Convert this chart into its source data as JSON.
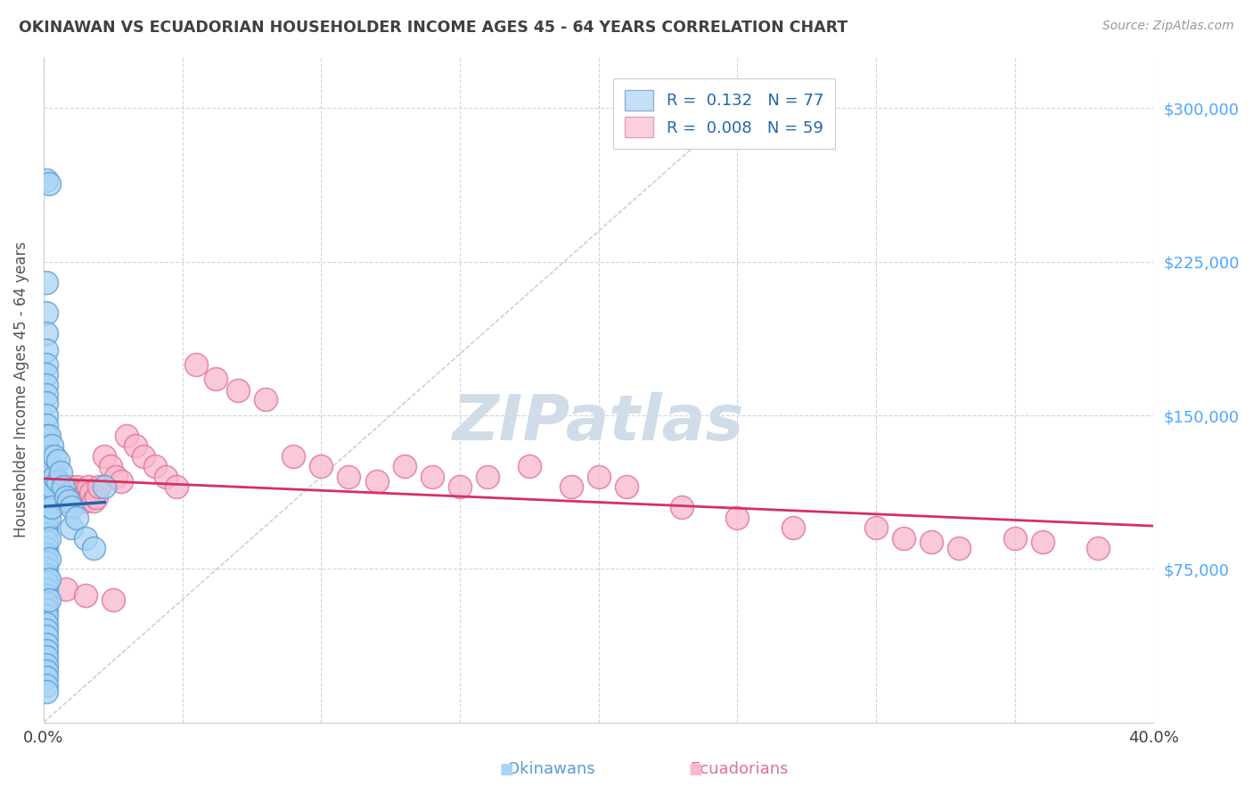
{
  "title": "OKINAWAN VS ECUADORIAN HOUSEHOLDER INCOME AGES 45 - 64 YEARS CORRELATION CHART",
  "source_text": "Source: ZipAtlas.com",
  "ylabel": "Householder Income Ages 45 - 64 years",
  "xlim": [
    0.0,
    0.4
  ],
  "ylim": [
    0,
    325000
  ],
  "yticks": [
    0,
    75000,
    150000,
    225000,
    300000
  ],
  "xticks": [
    0.0,
    0.05,
    0.1,
    0.15,
    0.2,
    0.25,
    0.3,
    0.35,
    0.4
  ],
  "xtick_labels": [
    "0.0%",
    "",
    "",
    "",
    "",
    "",
    "",
    "",
    "40.0%"
  ],
  "blue_scatter_color": "#a8d4f5",
  "blue_edge_color": "#5b9bd5",
  "pink_scatter_color": "#f9b8cd",
  "pink_edge_color": "#e07090",
  "blue_line_color": "#2166ac",
  "pink_line_color": "#d63060",
  "title_color": "#404040",
  "source_color": "#999999",
  "ylabel_color": "#555555",
  "ytick_color": "#4da6ff",
  "background_color": "#ffffff",
  "grid_color": "#c8d8e8",
  "diag_color": "#c0c8d8",
  "watermark_color": "#d0dce8",
  "okinawan_x": [
    0.001,
    0.002,
    0.001,
    0.001,
    0.001,
    0.001,
    0.001,
    0.001,
    0.001,
    0.001,
    0.001,
    0.001,
    0.001,
    0.001,
    0.001,
    0.001,
    0.001,
    0.001,
    0.001,
    0.001,
    0.001,
    0.001,
    0.001,
    0.001,
    0.001,
    0.001,
    0.001,
    0.001,
    0.001,
    0.001,
    0.001,
    0.001,
    0.001,
    0.001,
    0.001,
    0.001,
    0.001,
    0.001,
    0.001,
    0.001,
    0.001,
    0.001,
    0.001,
    0.001,
    0.001,
    0.001,
    0.001,
    0.001,
    0.001,
    0.001,
    0.002,
    0.002,
    0.002,
    0.002,
    0.002,
    0.002,
    0.002,
    0.002,
    0.002,
    0.003,
    0.003,
    0.003,
    0.003,
    0.004,
    0.004,
    0.005,
    0.005,
    0.006,
    0.007,
    0.008,
    0.009,
    0.01,
    0.01,
    0.012,
    0.015,
    0.018,
    0.022
  ],
  "okinawan_y": [
    265000,
    263000,
    215000,
    200000,
    190000,
    182000,
    175000,
    170000,
    165000,
    160000,
    156000,
    150000,
    145000,
    140000,
    135000,
    130000,
    125000,
    122000,
    118000,
    115000,
    112000,
    108000,
    105000,
    102000,
    98000,
    95000,
    92000,
    88000,
    85000,
    82000,
    78000,
    75000,
    72000,
    68000,
    65000,
    62000,
    58000,
    55000,
    52000,
    48000,
    45000,
    42000,
    38000,
    35000,
    32000,
    28000,
    25000,
    22000,
    18000,
    15000,
    140000,
    130000,
    120000,
    110000,
    100000,
    90000,
    80000,
    70000,
    60000,
    135000,
    125000,
    115000,
    105000,
    130000,
    120000,
    128000,
    118000,
    122000,
    115000,
    110000,
    108000,
    105000,
    95000,
    100000,
    90000,
    85000,
    115000
  ],
  "ecuadorian_x": [
    0.001,
    0.002,
    0.003,
    0.004,
    0.005,
    0.006,
    0.007,
    0.008,
    0.009,
    0.01,
    0.011,
    0.012,
    0.013,
    0.014,
    0.015,
    0.016,
    0.017,
    0.018,
    0.019,
    0.02,
    0.022,
    0.024,
    0.026,
    0.028,
    0.03,
    0.033,
    0.036,
    0.04,
    0.044,
    0.048,
    0.055,
    0.062,
    0.07,
    0.08,
    0.09,
    0.1,
    0.11,
    0.12,
    0.13,
    0.14,
    0.15,
    0.16,
    0.175,
    0.19,
    0.2,
    0.21,
    0.23,
    0.25,
    0.27,
    0.3,
    0.31,
    0.32,
    0.33,
    0.35,
    0.36,
    0.38,
    0.008,
    0.015,
    0.025
  ],
  "ecuadorian_y": [
    110000,
    105000,
    112000,
    108000,
    115000,
    110000,
    108000,
    112000,
    115000,
    110000,
    108000,
    115000,
    112000,
    110000,
    108000,
    115000,
    112000,
    108000,
    110000,
    115000,
    130000,
    125000,
    120000,
    118000,
    140000,
    135000,
    130000,
    125000,
    120000,
    115000,
    175000,
    168000,
    162000,
    158000,
    130000,
    125000,
    120000,
    118000,
    125000,
    120000,
    115000,
    120000,
    125000,
    115000,
    120000,
    115000,
    105000,
    100000,
    95000,
    95000,
    90000,
    88000,
    85000,
    90000,
    88000,
    85000,
    65000,
    62000,
    60000
  ]
}
